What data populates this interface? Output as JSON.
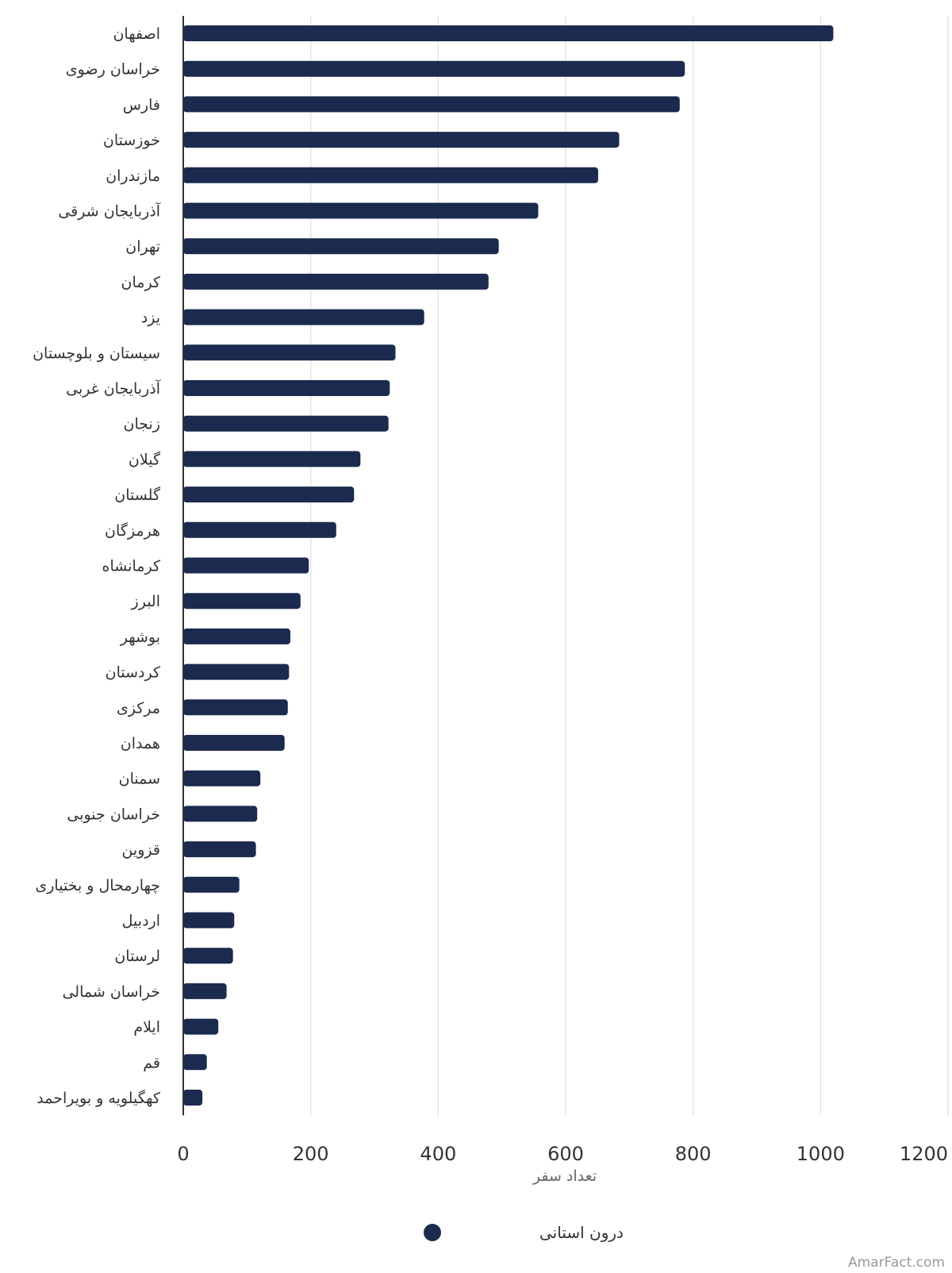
{
  "chart_data": {
    "type": "bar",
    "orientation": "horizontal",
    "categories": [
      "اصفهان",
      "خراسان رضوی",
      "فارس",
      "خوزستان",
      "مازندران",
      "آذربایجان شرقی",
      "تهران",
      "کرمان",
      "یزد",
      "سیستان و بلوچستان",
      "آذربایجان غربی",
      "زنجان",
      "گیلان",
      "گلستان",
      "هرمزگان",
      "کرمانشاه",
      "البرز",
      "بوشهر",
      "کردستان",
      "مرکزی",
      "همدان",
      "سمنان",
      "خراسان جنوبی",
      "قزوین",
      "چهارمحال و بختیاری",
      "اردبیل",
      "لرستان",
      "خراسان شمالی",
      "ایلام",
      "قم",
      "کهگیلویه و بویراحمد"
    ],
    "series": [
      {
        "name": "درون استانی",
        "color": "#1b2a4e",
        "values": [
          1020,
          787,
          779,
          684,
          651,
          557,
          495,
          479,
          378,
          333,
          324,
          322,
          278,
          268,
          240,
          197,
          184,
          168,
          166,
          164,
          159,
          121,
          116,
          114,
          88,
          80,
          78,
          68,
          55,
          37,
          30
        ]
      }
    ],
    "xlabel": "تعداد سفر",
    "ylabel": "",
    "xlim": [
      0,
      1200
    ],
    "x_ticks": [
      "0",
      "200",
      "400",
      "600",
      "800",
      "1000",
      "1200"
    ],
    "grid": true,
    "legend_position": "bottom-center",
    "colors": {
      "bar": "#1b2a4e",
      "grid": "#e3e3e3",
      "axis": "#333333"
    }
  },
  "credit": "AmarFact.com"
}
